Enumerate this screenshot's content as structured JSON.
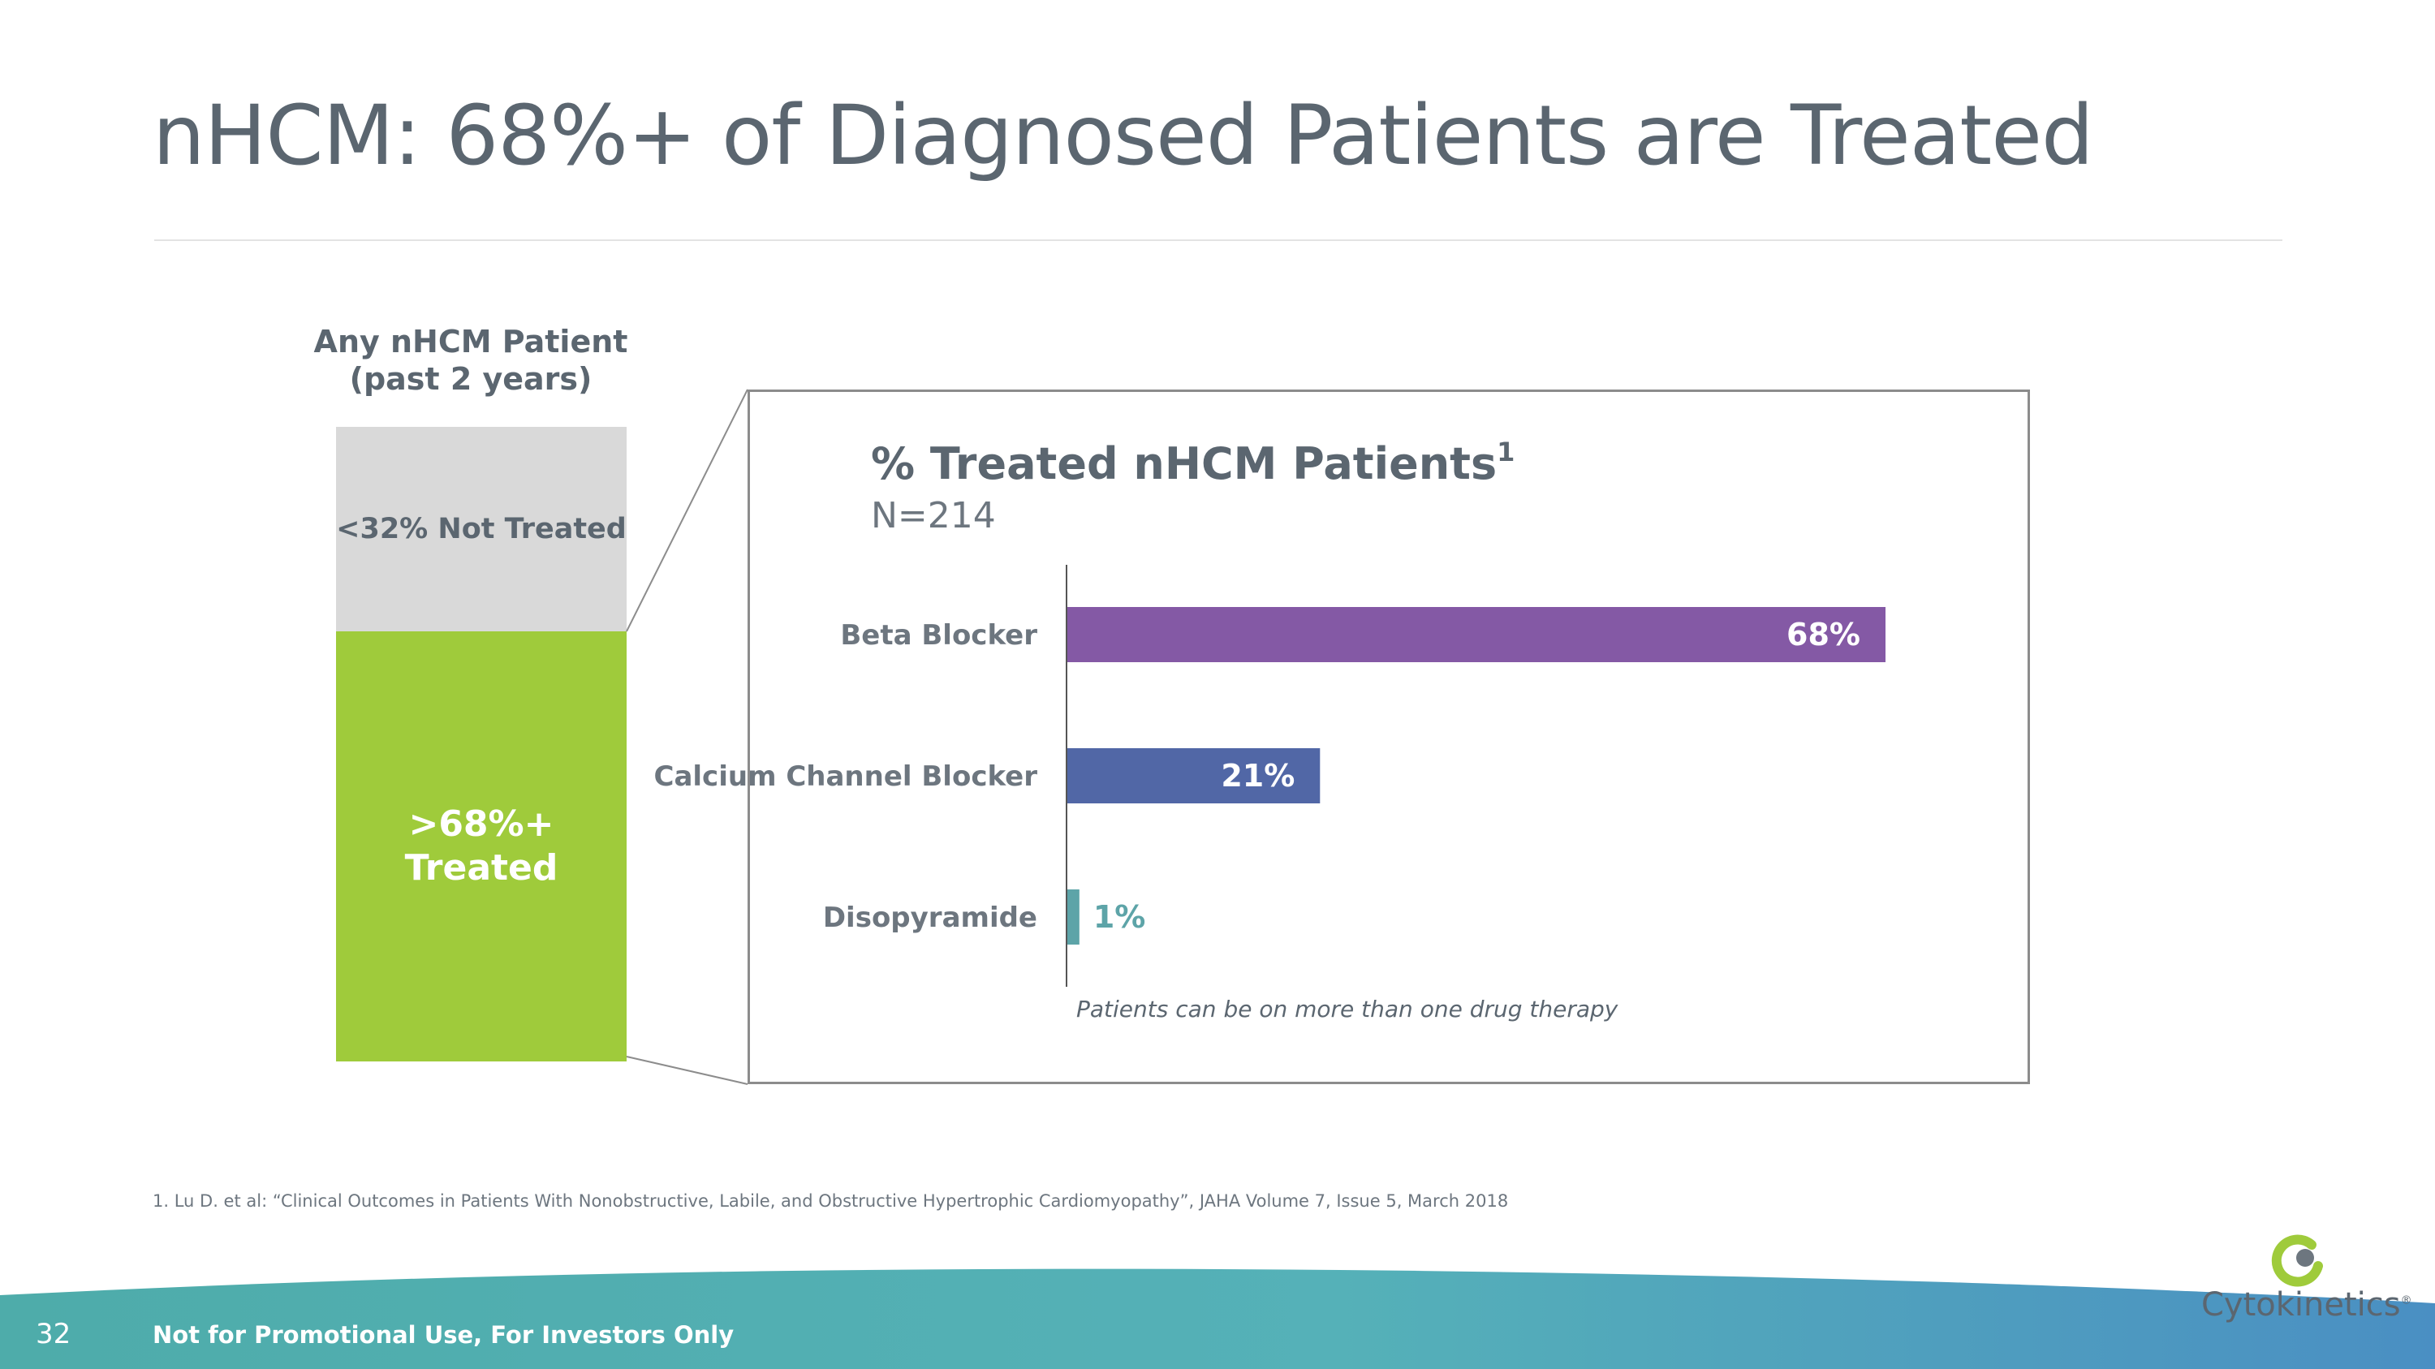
{
  "slide": {
    "title": "nHCM: 68%+ of Diagnosed Patients are Treated",
    "page_number": "32",
    "footer": "Not for Promotional Use, For Investors Only",
    "footnote": "1. Lu D. et al: “Clinical Outcomes in Patients With Nonobstructive, Labile, and Obstructive Hypertrophic Cardiomyopathy”, JAHA Volume 7, Issue 5, March 2018"
  },
  "stack": {
    "header_line1": "Any nHCM Patient",
    "header_line2": "(past 2 years)",
    "segments": [
      {
        "label": "<32% Not Treated",
        "share": 32,
        "color": "#d9d9d9"
      },
      {
        "label_line1": ">68%+",
        "label_line2": "Treated",
        "share": 68,
        "color": "#9fcb3b"
      }
    ]
  },
  "chart_data": {
    "type": "bar",
    "orientation": "horizontal",
    "title": "% Treated nHCM Patients",
    "title_superscript": "1",
    "subtitle": "N=214",
    "categories": [
      "Beta Blocker",
      "Calcium Channel Blocker",
      "Disopyramide"
    ],
    "values": [
      68,
      21,
      1
    ],
    "value_labels": [
      "68%",
      "21%",
      "1%"
    ],
    "colors": [
      "#8459a5",
      "#5167a6",
      "#5da4a8"
    ],
    "xlim": [
      0,
      100
    ],
    "note": "Patients can be on more than one drug therapy"
  },
  "logo": {
    "name": "Cytokinetics",
    "mark": "®"
  },
  "colors": {
    "text": "#5b6670",
    "accent_green": "#9fcb3b",
    "footer_teal": "#4eacaa",
    "footer_blue": "#4a8fc3"
  }
}
